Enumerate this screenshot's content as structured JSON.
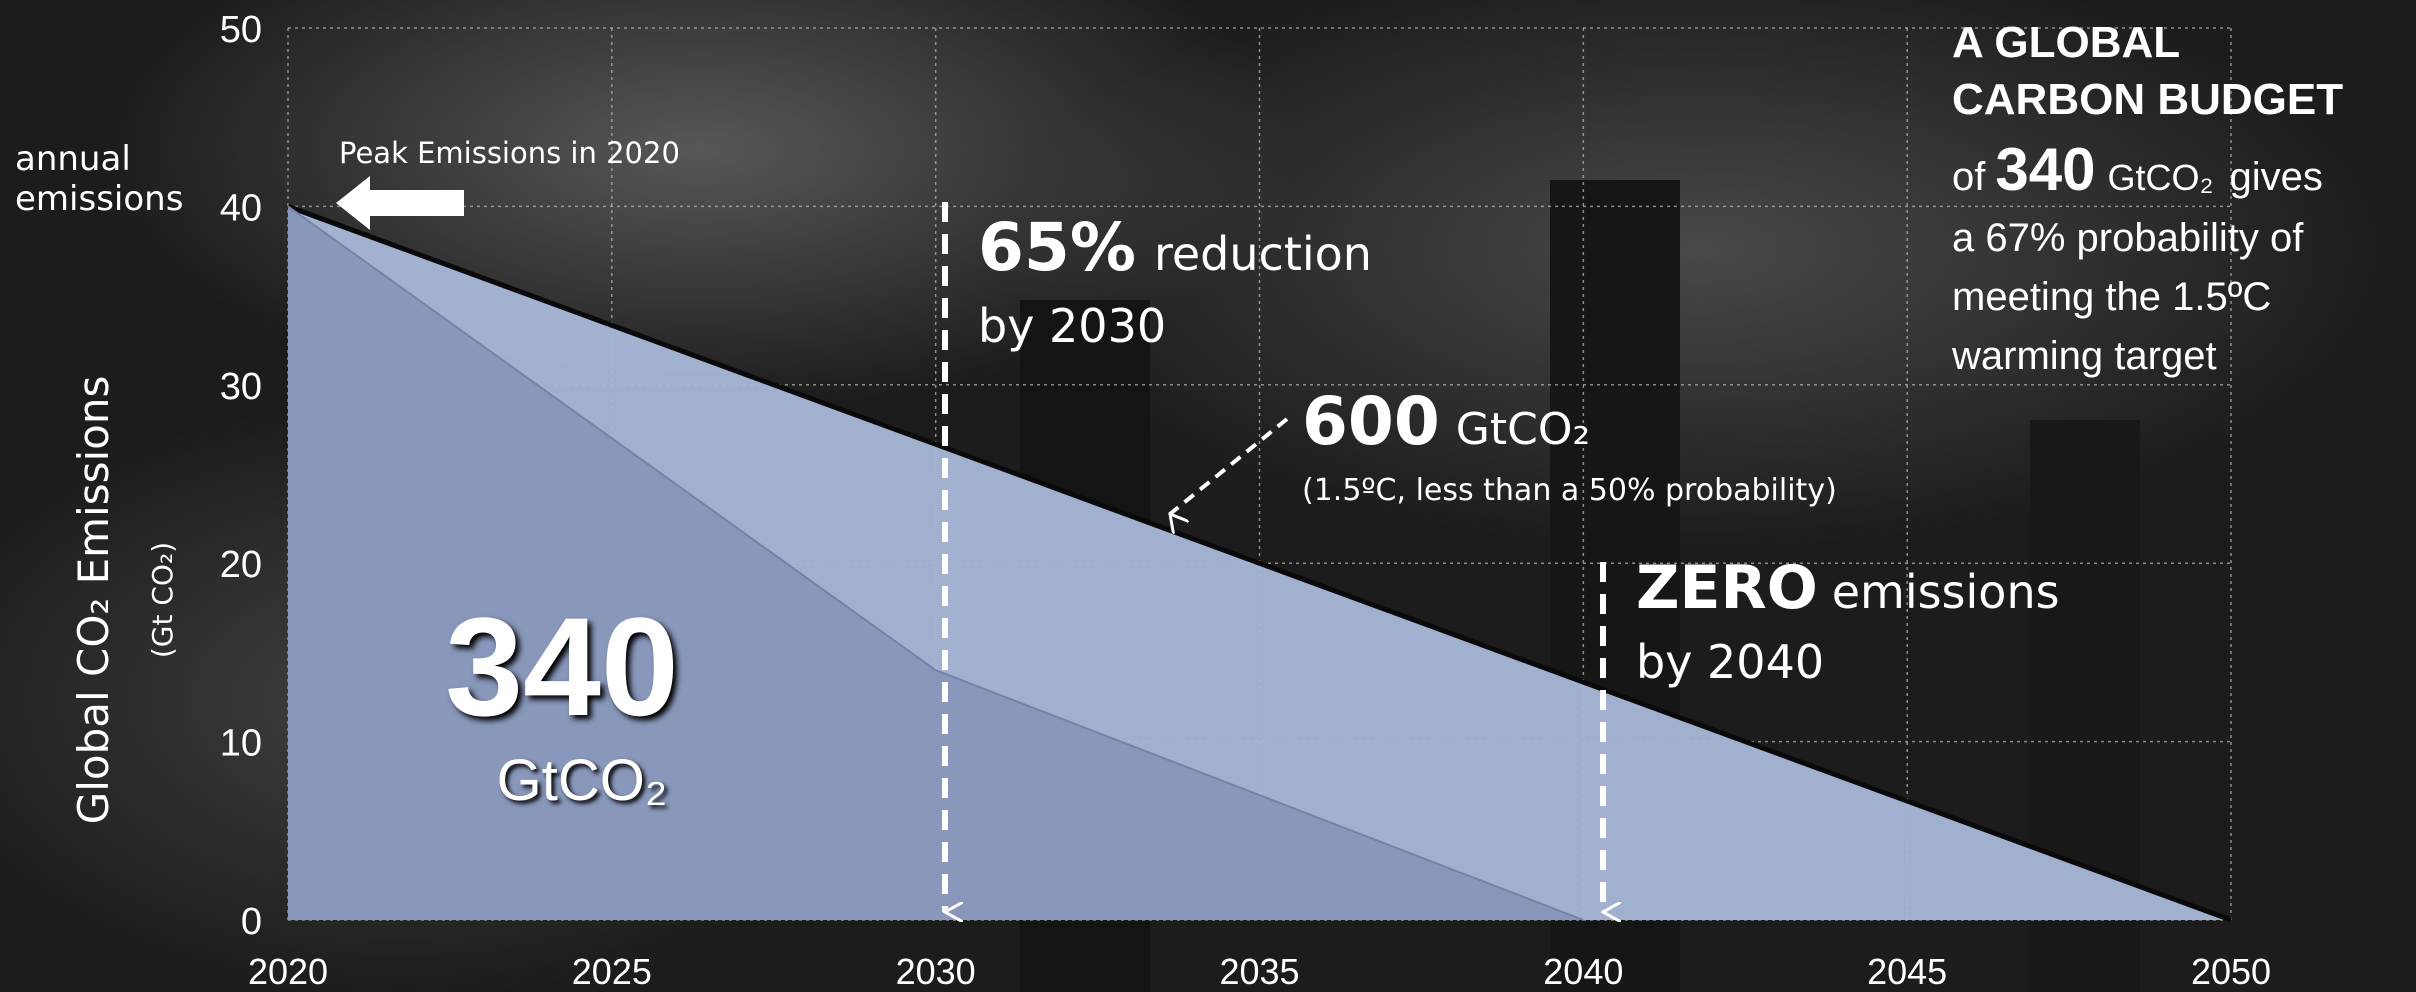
{
  "chart_data": {
    "type": "area",
    "y_label": "Global CO₂ Emissions",
    "y_unit": "(Gt CO₂)",
    "xlim": [
      2020,
      2050
    ],
    "xticks": [
      2020,
      2025,
      2030,
      2035,
      2040,
      2045,
      2050
    ],
    "ylim": [
      0,
      50
    ],
    "yticks": [
      0,
      10,
      20,
      30,
      40,
      50
    ],
    "grid": true,
    "series": [
      {
        "color": "#a9b8d9",
        "x": [
          2020,
          2050
        ],
        "values": [
          40,
          0
        ]
      },
      {
        "color": "#8796b8",
        "x": [
          2020,
          2030,
          2040
        ],
        "values": [
          40,
          14,
          0
        ]
      }
    ],
    "annotations": {
      "annual": "annual",
      "emissions_label": "emissions",
      "peak": "Peak Emissions in 2020",
      "r65": "65%",
      "reduction": "reduction",
      "by2030": "by 2030",
      "b600": "600",
      "b600_unit": "GtCO₂",
      "b600_note": "(1.5ºC, less than a 50% probability)",
      "zero": "ZERO",
      "zero_rest": "emissions",
      "by2040": "by 2040",
      "b340": "340",
      "b340_unit": "GtCO₂"
    },
    "sidebar": {
      "line1": "A GLOBAL",
      "line2": "CARBON BUDGET",
      "of": "of",
      "num": "340",
      "unit": "GtCO₂",
      "gives": "gives",
      "line4": "a 67% probability of",
      "line5": "meeting the 1.5ºC",
      "line6": "warming target"
    }
  }
}
